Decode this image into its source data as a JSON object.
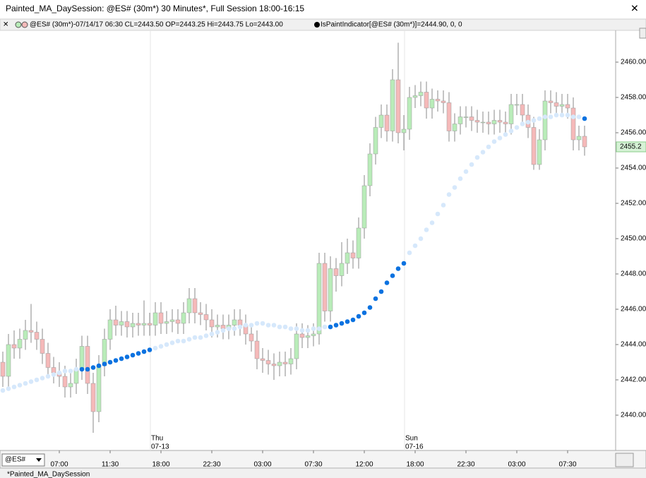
{
  "chart_data": {
    "type": "candlestick",
    "title": "Painted_MA_DaySession: @ES# (30m*) 30 Minutes*, Full Session 18:00-16:15",
    "info": "@ES# (30m*)-07/14/17 06:30 CL=2443.50 OP=2443.25 Hi=2443.75 Lo=2443.00",
    "indicator_info": "IsPaintIndicator[@ES# (30m*)]=2444.90, 0, 0",
    "symbol": "@ES#",
    "tab": "*Painted_MA_DaySession",
    "up_color": "#b9ecb9",
    "down_color": "#f5b9b9",
    "open": [
      2443.0,
      2442.2,
      2444.0,
      2443.8,
      2444.3,
      2444.8,
      2444.7,
      2444.3,
      2443.5,
      2442.7,
      2442.4,
      2442.2,
      2441.6,
      2441.8,
      2442.6,
      2443.9,
      2441.8,
      2440.2,
      2442.8,
      2444.3,
      2445.4,
      2445.1,
      2445.3,
      2445.0,
      2445.2,
      2445.1,
      2445.2,
      2445.1,
      2445.8,
      2445.2,
      2445.3,
      2445.4,
      2445.2,
      2445.8,
      2446.6,
      2445.8,
      2445.7,
      2445.4,
      2445.0,
      2445.1,
      2444.9,
      2445.1,
      2445.4,
      2445.1,
      2444.6,
      2444.2,
      2443.2,
      2443.1,
      2442.9,
      2442.8,
      2443.0,
      2442.9,
      2443.2,
      2444.6,
      2444.4,
      2444.5,
      2444.6,
      2448.6,
      2445.9,
      2448.3,
      2447.9,
      2448.6,
      2449.2,
      2448.9,
      2450.6,
      2453.0,
      2454.8,
      2456.3,
      2457.0,
      2456.1,
      2459.0,
      2456.0,
      2456.2,
      2458.0,
      2458.1,
      2458.3,
      2457.4,
      2457.9,
      2457.8,
      2457.7,
      2456.1,
      2456.5,
      2456.9,
      2456.9,
      2456.7,
      2456.6,
      2456.6,
      2456.5,
      2456.7,
      2456.6,
      2456.5,
      2457.6,
      2457.6,
      2457.0,
      2456.3,
      2454.2,
      2455.6,
      2457.8,
      2457.7,
      2457.5,
      2457.6,
      2457.4,
      2455.6,
      2455.8
    ],
    "high": [
      2443.6,
      2444.6,
      2444.8,
      2444.9,
      2445.4,
      2446.3,
      2445.3,
      2444.9,
      2444.1,
      2443.3,
      2443.0,
      2442.8,
      2442.4,
      2443.2,
      2444.5,
      2444.5,
      2442.4,
      2443.4,
      2444.9,
      2446.0,
      2446.2,
      2445.9,
      2445.9,
      2445.8,
      2445.8,
      2446.5,
      2445.8,
      2446.4,
      2446.4,
      2445.9,
      2446.0,
      2446.0,
      2446.4,
      2447.2,
      2447.2,
      2446.4,
      2446.3,
      2446.0,
      2445.7,
      2445.7,
      2445.7,
      2446.0,
      2446.0,
      2445.7,
      2445.2,
      2444.8,
      2443.8,
      2443.7,
      2443.5,
      2443.6,
      2443.6,
      2443.8,
      2445.2,
      2445.2,
      2445.1,
      2445.2,
      2449.2,
      2449.2,
      2449.0,
      2448.9,
      2449.8,
      2450.0,
      2449.9,
      2451.2,
      2453.6,
      2455.4,
      2456.9,
      2457.6,
      2457.6,
      2459.6,
      2461.1,
      2457.0,
      2458.6,
      2458.7,
      2458.9,
      2458.9,
      2458.5,
      2458.4,
      2458.4,
      2458.3,
      2457.1,
      2457.5,
      2457.5,
      2457.5,
      2457.3,
      2457.2,
      2457.2,
      2457.3,
      2457.3,
      2457.2,
      2458.2,
      2458.2,
      2458.2,
      2457.6,
      2456.9,
      2456.2,
      2458.4,
      2458.4,
      2458.3,
      2458.2,
      2458.2,
      2458.0,
      2456.4,
      2456.4
    ],
    "low": [
      2441.6,
      2441.6,
      2443.2,
      2443.2,
      2443.7,
      2444.1,
      2443.7,
      2442.9,
      2442.1,
      2441.8,
      2441.6,
      2441.0,
      2441.0,
      2441.2,
      2442.0,
      2441.2,
      2439.0,
      2439.6,
      2442.2,
      2443.7,
      2444.5,
      2444.5,
      2444.4,
      2444.4,
      2444.5,
      2444.5,
      2444.5,
      2444.5,
      2444.6,
      2444.6,
      2444.7,
      2444.6,
      2444.6,
      2445.2,
      2445.2,
      2445.1,
      2444.8,
      2444.4,
      2444.4,
      2444.3,
      2444.3,
      2444.5,
      2444.5,
      2444.0,
      2443.6,
      2442.6,
      2442.4,
      2442.3,
      2442.0,
      2442.2,
      2442.2,
      2442.3,
      2442.6,
      2443.8,
      2443.8,
      2443.9,
      2444.0,
      2445.3,
      2445.3,
      2447.0,
      2447.3,
      2448.0,
      2448.3,
      2448.3,
      2450.0,
      2452.4,
      2454.2,
      2455.7,
      2455.5,
      2455.5,
      2455.4,
      2455.0,
      2455.6,
      2457.4,
      2457.5,
      2456.8,
      2456.8,
      2457.2,
      2457.1,
      2455.5,
      2455.5,
      2455.9,
      2456.3,
      2456.1,
      2456.0,
      2456.0,
      2455.9,
      2455.9,
      2456.0,
      2455.9,
      2455.9,
      2457.0,
      2456.4,
      2455.7,
      2453.9,
      2453.9,
      2455.0,
      2457.1,
      2456.9,
      2456.9,
      2456.8,
      2455.0,
      2455.0,
      2454.7
    ],
    "close": [
      2442.2,
      2444.0,
      2443.8,
      2444.3,
      2444.8,
      2444.7,
      2444.3,
      2443.5,
      2442.7,
      2442.4,
      2442.2,
      2441.6,
      2441.8,
      2442.6,
      2443.9,
      2441.8,
      2440.2,
      2442.8,
      2444.3,
      2445.4,
      2445.1,
      2445.3,
      2445.0,
      2445.2,
      2445.1,
      2445.2,
      2445.1,
      2445.8,
      2445.2,
      2445.3,
      2445.4,
      2445.2,
      2445.8,
      2446.6,
      2445.8,
      2445.7,
      2445.4,
      2445.0,
      2445.1,
      2444.9,
      2445.1,
      2445.4,
      2445.1,
      2444.6,
      2444.2,
      2443.2,
      2443.1,
      2442.9,
      2442.8,
      2443.0,
      2442.9,
      2443.2,
      2444.6,
      2444.4,
      2444.5,
      2444.6,
      2448.6,
      2445.9,
      2448.3,
      2447.9,
      2448.6,
      2449.2,
      2448.9,
      2450.6,
      2453.0,
      2454.8,
      2456.3,
      2457.0,
      2456.1,
      2459.0,
      2456.0,
      2456.2,
      2458.0,
      2458.1,
      2458.3,
      2457.4,
      2457.9,
      2457.8,
      2457.7,
      2456.1,
      2456.5,
      2456.9,
      2456.9,
      2456.7,
      2456.6,
      2456.6,
      2456.5,
      2456.7,
      2456.6,
      2456.5,
      2457.6,
      2457.6,
      2457.0,
      2456.3,
      2454.2,
      2455.6,
      2457.8,
      2457.7,
      2457.5,
      2457.6,
      2457.4,
      2455.6,
      2455.8,
      2455.2
    ],
    "indicator": {
      "color": "#d6e8fb",
      "paint_color": "#0b72e0",
      "values": [
        2441.4,
        2441.5,
        2441.6,
        2441.7,
        2441.8,
        2441.9,
        2442.0,
        2442.1,
        2442.2,
        2442.3,
        2442.4,
        2442.5,
        2442.5,
        2442.6,
        2442.6,
        2442.6,
        2442.7,
        2442.8,
        2442.9,
        2443.0,
        2443.1,
        2443.2,
        2443.3,
        2443.4,
        2443.5,
        2443.6,
        2443.7,
        2443.8,
        2443.9,
        2444.0,
        2444.1,
        2444.2,
        2444.2,
        2444.3,
        2444.4,
        2444.4,
        2444.5,
        2444.6,
        2444.7,
        2444.8,
        2444.9,
        2444.9,
        2445.0,
        2445.1,
        2445.1,
        2445.2,
        2445.2,
        2445.1,
        2445.1,
        2445.0,
        2445.0,
        2444.9,
        2444.9,
        2444.8,
        2444.8,
        2444.9,
        2444.9,
        2445.0,
        2445.0,
        2445.1,
        2445.2,
        2445.3,
        2445.4,
        2445.6,
        2445.8,
        2446.1,
        2446.6,
        2447.0,
        2447.5,
        2447.9,
        2448.3,
        2448.6,
        2449.2,
        2449.6,
        2450.0,
        2450.5,
        2450.9,
        2451.4,
        2451.9,
        2452.5,
        2452.9,
        2453.4,
        2453.8,
        2454.2,
        2454.6,
        2454.9,
        2455.2,
        2455.5,
        2455.7,
        2455.9,
        2456.1,
        2456.3,
        2456.5,
        2456.6,
        2456.7,
        2456.8,
        2456.9,
        2456.9,
        2457.0,
        2457.0,
        2457.0,
        2456.9,
        2456.9,
        2456.8
      ],
      "painted": [
        false,
        false,
        false,
        false,
        false,
        false,
        false,
        false,
        false,
        false,
        false,
        false,
        false,
        false,
        true,
        true,
        true,
        true,
        true,
        true,
        true,
        true,
        true,
        true,
        true,
        true,
        true,
        false,
        false,
        false,
        false,
        false,
        false,
        false,
        false,
        false,
        false,
        false,
        false,
        false,
        false,
        false,
        false,
        false,
        false,
        false,
        false,
        false,
        false,
        false,
        false,
        false,
        false,
        false,
        false,
        false,
        false,
        false,
        true,
        true,
        true,
        true,
        true,
        true,
        true,
        true,
        true,
        true,
        true,
        true,
        true,
        true,
        false,
        false,
        false,
        false,
        false,
        false,
        false,
        false,
        false,
        false,
        false,
        false,
        false,
        false,
        false,
        false,
        false,
        false,
        false,
        false,
        false,
        false,
        false,
        false,
        false,
        false,
        false,
        false,
        false,
        false,
        false,
        true
      ]
    },
    "last_price": 2455.2,
    "ylim": [
      2438,
      2461.8
    ],
    "yticks": [
      {
        "value": 2440,
        "label": "2440.00"
      },
      {
        "value": 2442,
        "label": "2442.00"
      },
      {
        "value": 2444,
        "label": "2444.00"
      },
      {
        "value": 2446,
        "label": "2446.00"
      },
      {
        "value": 2448,
        "label": "2448.00"
      },
      {
        "value": 2450,
        "label": "2450.00"
      },
      {
        "value": 2452,
        "label": "2452.00"
      },
      {
        "value": 2454,
        "label": "2454.00"
      },
      {
        "value": 2456,
        "label": "2456.00"
      },
      {
        "value": 2458,
        "label": "2458.00"
      },
      {
        "value": 2460,
        "label": "2460.00"
      }
    ],
    "xticks": [
      {
        "value": 10,
        "label": "07:00"
      },
      {
        "value": 19,
        "label": "11:30"
      },
      {
        "value": 28,
        "label": "18:00"
      },
      {
        "value": 37,
        "label": "22:30"
      },
      {
        "value": 46,
        "label": "03:00"
      },
      {
        "value": 55,
        "label": "07:30"
      },
      {
        "value": 64,
        "label": "12:00"
      },
      {
        "value": 73,
        "label": "18:00"
      },
      {
        "value": 82,
        "label": "22:30"
      },
      {
        "value": 91,
        "label": "03:00"
      },
      {
        "value": 100,
        "label": "07:30"
      }
    ],
    "days": [
      {
        "value": 27,
        "label": "Thu",
        "date": "07-13"
      },
      {
        "value": 72,
        "label": "Sun",
        "date": "07-16"
      }
    ]
  }
}
